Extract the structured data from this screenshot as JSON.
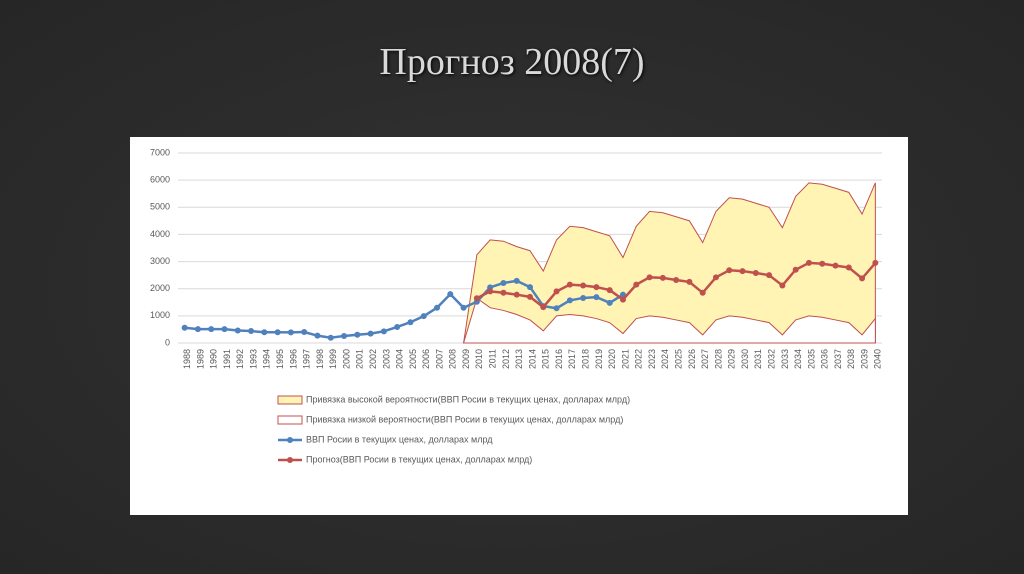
{
  "title": "Прогноз 2008(7)",
  "chart_data": {
    "type": "line",
    "categories": [
      "1988",
      "1989",
      "1990",
      "1991",
      "1992",
      "1993",
      "1994",
      "1995",
      "1996",
      "1997",
      "1998",
      "1999",
      "2000",
      "2001",
      "2002",
      "2003",
      "2004",
      "2005",
      "2006",
      "2007",
      "2008",
      "2009",
      "2010",
      "2011",
      "2012",
      "2013",
      "2014",
      "2015",
      "2016",
      "2017",
      "2018",
      "2019",
      "2020",
      "2021",
      "2022",
      "2023",
      "2024",
      "2025",
      "2026",
      "2027",
      "2028",
      "2029",
      "2030",
      "2031",
      "2032",
      "2033",
      "2034",
      "2035",
      "2036",
      "2037",
      "2038",
      "2039",
      "2040"
    ],
    "ylim": [
      0,
      7000
    ],
    "yticks": [
      0,
      1000,
      2000,
      3000,
      4000,
      5000,
      6000,
      7000
    ],
    "grid": true,
    "series": [
      {
        "name": "Привязка высокой вероятности(ВВП Росии в текущих ценах, долларах млрд)",
        "type": "area",
        "color": "#c0504d",
        "fill": "#fff4b3",
        "values": [
          null,
          null,
          null,
          null,
          null,
          null,
          null,
          null,
          null,
          null,
          null,
          null,
          null,
          null,
          null,
          null,
          null,
          null,
          null,
          null,
          null,
          0,
          3250,
          3800,
          3750,
          3550,
          3400,
          2650,
          3800,
          4300,
          4250,
          4100,
          3950,
          3150,
          4300,
          4850,
          4800,
          4650,
          4500,
          3700,
          4850,
          5350,
          5300,
          5150,
          5000,
          4250,
          5400,
          5900,
          5850,
          5700,
          5550,
          4750,
          5900
        ]
      },
      {
        "name": "Привязка низкой вероятности(ВВП Росии в текущих ценах, долларах млрд)",
        "type": "area",
        "color": "#c0504d",
        "fill": "#ffffff",
        "values": [
          null,
          null,
          null,
          null,
          null,
          null,
          null,
          null,
          null,
          null,
          null,
          null,
          null,
          null,
          null,
          null,
          null,
          null,
          null,
          null,
          null,
          0,
          1650,
          1300,
          1200,
          1050,
          850,
          450,
          1000,
          1050,
          1000,
          900,
          750,
          350,
          900,
          1000,
          950,
          850,
          750,
          300,
          850,
          1000,
          950,
          850,
          750,
          300,
          850,
          1000,
          950,
          850,
          750,
          300,
          900
        ]
      },
      {
        "name": "ВВП Росии в текущих ценах, долларах млрд",
        "type": "line",
        "color": "#4f81bd",
        "values": [
          560,
          510,
          510,
          510,
          460,
          440,
          395,
          395,
          390,
          405,
          270,
          195,
          260,
          305,
          345,
          430,
          590,
          765,
          990,
          1300,
          1800,
          1300,
          1520,
          2050,
          2210,
          2290,
          2060,
          1360,
          1280,
          1570,
          1660,
          1690,
          1480,
          1780,
          null,
          null,
          null,
          null,
          null,
          null,
          null,
          null,
          null,
          null,
          null,
          null,
          null,
          null,
          null,
          null,
          null,
          null,
          null
        ]
      },
      {
        "name": "Прогноз(ВВП Росии в текущих ценах, долларах млрд)",
        "type": "line",
        "color": "#c0504d",
        "values": [
          null,
          null,
          null,
          null,
          null,
          null,
          null,
          null,
          null,
          null,
          null,
          null,
          null,
          null,
          null,
          null,
          null,
          null,
          null,
          null,
          null,
          null,
          1650,
          1900,
          1850,
          1780,
          1700,
          1320,
          1900,
          2150,
          2120,
          2060,
          1950,
          1600,
          2150,
          2420,
          2400,
          2320,
          2250,
          1850,
          2420,
          2680,
          2650,
          2580,
          2500,
          2120,
          2700,
          2950,
          2920,
          2850,
          2780,
          2380,
          2950
        ]
      }
    ]
  }
}
